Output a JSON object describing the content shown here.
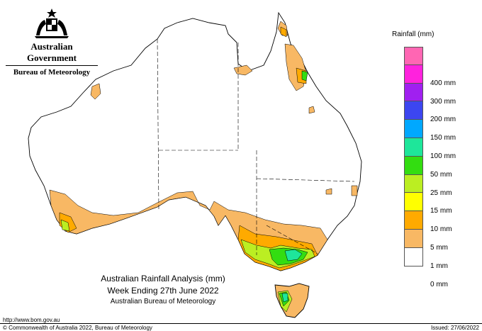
{
  "header": {
    "government": "Australian Government",
    "agency": "Bureau of Meteorology"
  },
  "legend": {
    "title": "Rainfall (mm)",
    "items": [
      {
        "label": "",
        "color": "#ff66b3"
      },
      {
        "label": "400 mm",
        "color": "#ff22dd"
      },
      {
        "label": "300 mm",
        "color": "#a020f0"
      },
      {
        "label": "200 mm",
        "color": "#3c46f0"
      },
      {
        "label": "150 mm",
        "color": "#00a8ff"
      },
      {
        "label": "100 mm",
        "color": "#1ee69a"
      },
      {
        "label": "50 mm",
        "color": "#33dd11"
      },
      {
        "label": "25 mm",
        "color": "#bbee22"
      },
      {
        "label": "15 mm",
        "color": "#ffff00"
      },
      {
        "label": "10 mm",
        "color": "#ffaa00"
      },
      {
        "label": "5 mm",
        "color": "#f8b864"
      },
      {
        "label": "1 mm",
        "color": "#ffffff"
      },
      {
        "label": "0 mm",
        "color": ""
      }
    ]
  },
  "caption": {
    "line1": "Australian Rainfall Analysis (mm)",
    "line2": "Week Ending 27th June 2022",
    "line3": "Australian Bureau of Meteorology"
  },
  "footer": {
    "url": "http://www.bom.gov.au",
    "copyright": "© Commonwealth of Australia 2022, Bureau of Meteorology",
    "issued": "Issued: 27/06/2022"
  },
  "colors": {
    "light_orange": "#f8b864",
    "orange": "#ffaa00",
    "yellow": "#ffff00",
    "yellow_green": "#bbee22",
    "green": "#33dd11",
    "teal": "#1ee69a"
  }
}
